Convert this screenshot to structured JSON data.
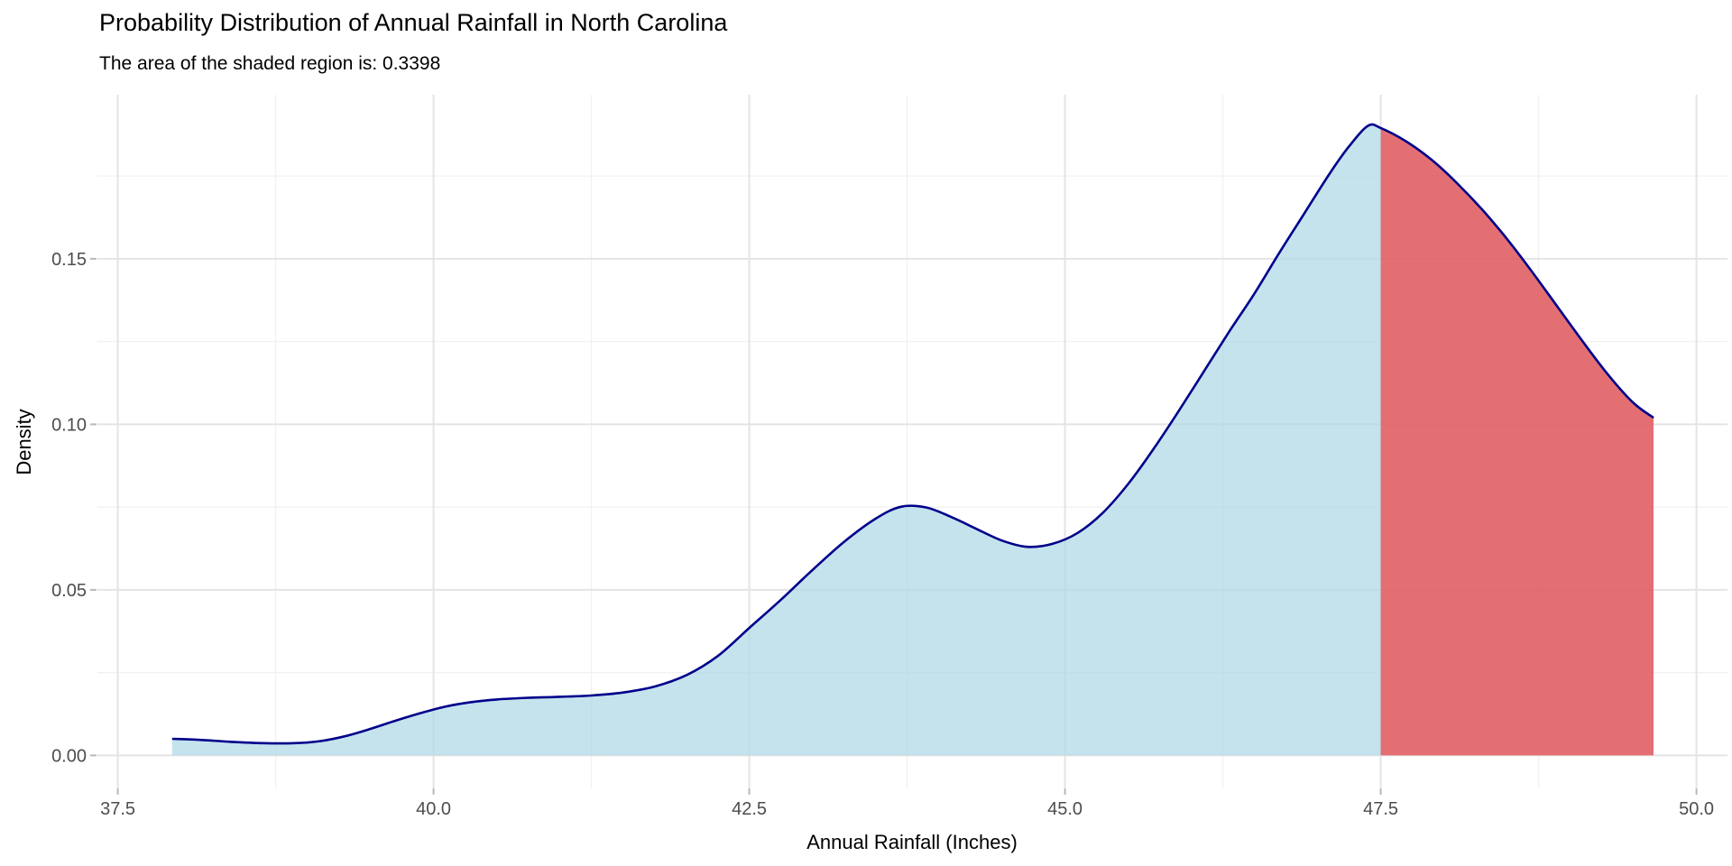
{
  "title": "Probability Distribution of Annual Rainfall in North Carolina",
  "subtitle": "The area of the shaded region is: 0.3398",
  "shaded_area_value": "0.3398",
  "chart_data": {
    "type": "area",
    "title": "Probability Distribution of Annual Rainfall in North Carolina",
    "subtitle": "The area of the shaded region is: 0.3398",
    "xlabel": "Annual Rainfall (Inches)",
    "ylabel": "Density",
    "xlim": [
      37.34,
      50.25
    ],
    "ylim": [
      0,
      0.1997
    ],
    "x_major_ticks": [
      37.5,
      40.0,
      42.5,
      45.0,
      47.5,
      50.0
    ],
    "x_tick_labels": [
      "37.5",
      "40.0",
      "42.5",
      "45.0",
      "47.5",
      "50.0"
    ],
    "x_minor_ticks": [
      38.75,
      41.25,
      43.75,
      46.25,
      48.75
    ],
    "y_major_ticks": [
      0.0,
      0.05,
      0.1,
      0.15
    ],
    "y_tick_labels": [
      "0.00",
      "0.05",
      "0.10",
      "0.15"
    ],
    "y_minor_ticks": [
      0.025,
      0.075,
      0.125,
      0.175
    ],
    "grid": true,
    "legend": false,
    "shade_from": 47.5,
    "shaded_area": 0.3398,
    "series": [
      {
        "name": "density",
        "points": [
          [
            37.93,
            0.005
          ],
          [
            38.15,
            0.0047
          ],
          [
            38.4,
            0.0041
          ],
          [
            38.65,
            0.0037
          ],
          [
            38.9,
            0.0037
          ],
          [
            39.1,
            0.0043
          ],
          [
            39.3,
            0.0058
          ],
          [
            39.5,
            0.008
          ],
          [
            39.7,
            0.0105
          ],
          [
            39.9,
            0.0128
          ],
          [
            40.1,
            0.0148
          ],
          [
            40.3,
            0.0161
          ],
          [
            40.5,
            0.0169
          ],
          [
            40.75,
            0.0174
          ],
          [
            41.0,
            0.0177
          ],
          [
            41.25,
            0.0181
          ],
          [
            41.5,
            0.019
          ],
          [
            41.75,
            0.0208
          ],
          [
            42.0,
            0.0242
          ],
          [
            42.25,
            0.03
          ],
          [
            42.5,
            0.0385
          ],
          [
            42.75,
            0.047
          ],
          [
            43.0,
            0.056
          ],
          [
            43.25,
            0.0645
          ],
          [
            43.5,
            0.0715
          ],
          [
            43.7,
            0.0751
          ],
          [
            43.9,
            0.0749
          ],
          [
            44.1,
            0.072
          ],
          [
            44.3,
            0.0684
          ],
          [
            44.5,
            0.0649
          ],
          [
            44.7,
            0.063
          ],
          [
            44.9,
            0.0639
          ],
          [
            45.1,
            0.0672
          ],
          [
            45.3,
            0.0733
          ],
          [
            45.5,
            0.082
          ],
          [
            45.7,
            0.0925
          ],
          [
            45.9,
            0.104
          ],
          [
            46.1,
            0.116
          ],
          [
            46.3,
            0.128
          ],
          [
            46.5,
            0.1395
          ],
          [
            46.7,
            0.152
          ],
          [
            46.9,
            0.164
          ],
          [
            47.1,
            0.176
          ],
          [
            47.25,
            0.184
          ],
          [
            47.4,
            0.1902
          ],
          [
            47.5,
            0.1895
          ],
          [
            47.7,
            0.1855
          ],
          [
            47.9,
            0.18
          ],
          [
            48.1,
            0.173
          ],
          [
            48.3,
            0.165
          ],
          [
            48.5,
            0.156
          ],
          [
            48.7,
            0.146
          ],
          [
            48.9,
            0.1355
          ],
          [
            49.1,
            0.125
          ],
          [
            49.3,
            0.115
          ],
          [
            49.5,
            0.1065
          ],
          [
            49.66,
            0.102
          ]
        ]
      }
    ],
    "colors": {
      "fill_main": "rgba(173,216,230,0.72)",
      "fill_shaded": "rgba(224,95,100,0.9)",
      "line": "#00008B",
      "grid_major": "#E4E4E4",
      "grid_minor": "#F1F1F1",
      "tick_mark": "#B9B9B9",
      "tick_label": "#4D4D4D",
      "background": "#FFFFFF"
    }
  }
}
